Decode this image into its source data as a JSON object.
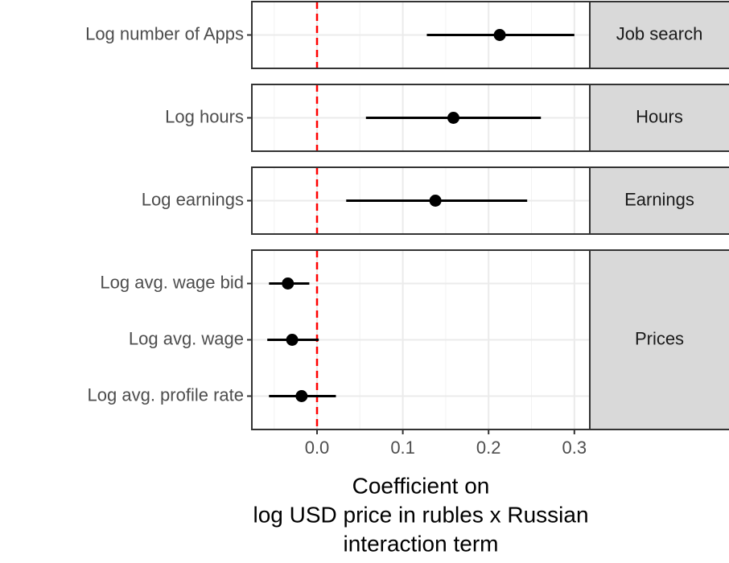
{
  "chart_data": {
    "type": "pointrange",
    "xlabel": [
      "Coefficient on",
      "log USD price in rubles x Russian",
      "interaction term"
    ],
    "xlim": [
      -0.076,
      0.318
    ],
    "xticks": [
      {
        "value": 0,
        "label": "0.0"
      },
      {
        "value": 0.1,
        "label": "0.1"
      },
      {
        "value": 0.2,
        "label": "0.2"
      },
      {
        "value": 0.3,
        "label": "0.3"
      }
    ],
    "refline": 0,
    "refline_color": "#ff0000",
    "point_color": "#000000",
    "grid": true,
    "panels": [
      {
        "name": "Job search",
        "rows": [
          {
            "label": "Log number of Apps",
            "estimate": 0.213,
            "lo": 0.128,
            "hi": 0.3
          }
        ]
      },
      {
        "name": "Hours",
        "rows": [
          {
            "label": "Log hours",
            "estimate": 0.159,
            "lo": 0.057,
            "hi": 0.261
          }
        ]
      },
      {
        "name": "Earnings",
        "rows": [
          {
            "label": "Log earnings",
            "estimate": 0.138,
            "lo": 0.034,
            "hi": 0.245
          }
        ]
      },
      {
        "name": "Prices",
        "rows": [
          {
            "label": "Log avg. wage bid",
            "estimate": -0.034,
            "lo": -0.056,
            "hi": -0.009
          },
          {
            "label": "Log avg. wage",
            "estimate": -0.029,
            "lo": -0.058,
            "hi": 0.002
          },
          {
            "label": "Log avg. profile rate",
            "estimate": -0.018,
            "lo": -0.056,
            "hi": 0.022
          }
        ]
      }
    ]
  }
}
